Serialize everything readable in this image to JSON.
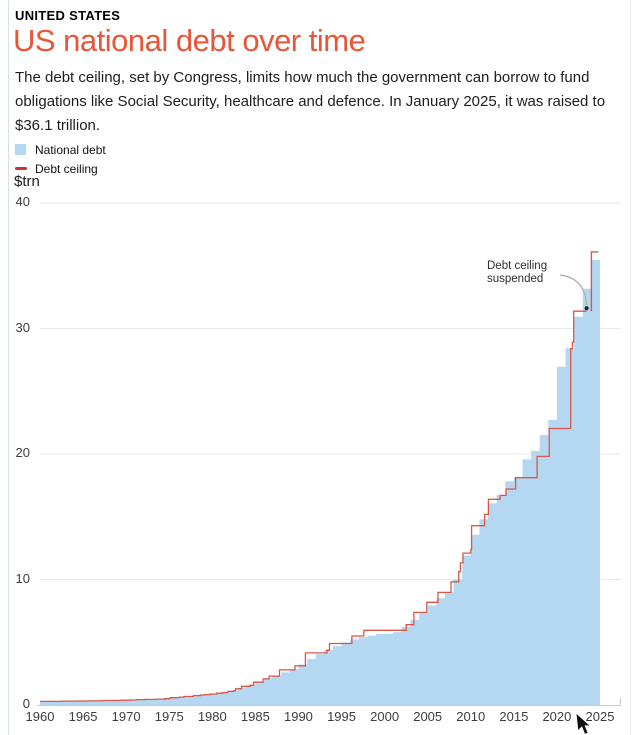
{
  "header": {
    "kicker": "UNITED STATES",
    "title": "US national debt over time",
    "accent_color": "#E8563A",
    "description": "The debt ceiling, set by Congress, limits how much the government can borrow to fund obligations like Social Security, healthcare and defence. In January 2025, it was raised to $36.1 trillion."
  },
  "legend": {
    "items": [
      {
        "label": "National debt",
        "type": "area",
        "color": "#B5D8F2"
      },
      {
        "label": "Debt ceiling",
        "type": "line",
        "color": "#CD322E"
      }
    ]
  },
  "chart_data": {
    "type": "area",
    "title": "US national debt over time",
    "xlabel": "",
    "ylabel": "$trn",
    "xlim": [
      1960,
      2025
    ],
    "ylim": [
      0,
      40
    ],
    "y_ticks": [
      0,
      10,
      20,
      30,
      40
    ],
    "x_ticks": [
      1960,
      1965,
      1970,
      1975,
      1980,
      1985,
      1990,
      1995,
      2000,
      2005,
      2010,
      2015,
      2020,
      2025
    ],
    "grid": "horizontal",
    "legend_position": "top-left",
    "series": [
      {
        "name": "National debt",
        "type": "step-area",
        "color": "#B5D8F2",
        "points": [
          [
            1960,
            0.29
          ],
          [
            1961,
            0.29
          ],
          [
            1962,
            0.3
          ],
          [
            1963,
            0.31
          ],
          [
            1964,
            0.31
          ],
          [
            1965,
            0.32
          ],
          [
            1966,
            0.32
          ],
          [
            1967,
            0.33
          ],
          [
            1968,
            0.35
          ],
          [
            1969,
            0.35
          ],
          [
            1970,
            0.37
          ],
          [
            1971,
            0.4
          ],
          [
            1972,
            0.43
          ],
          [
            1973,
            0.46
          ],
          [
            1974,
            0.47
          ],
          [
            1975,
            0.53
          ],
          [
            1976,
            0.62
          ],
          [
            1977,
            0.7
          ],
          [
            1978,
            0.77
          ],
          [
            1979,
            0.83
          ],
          [
            1980,
            0.91
          ],
          [
            1981,
            1.0
          ],
          [
            1982,
            1.14
          ],
          [
            1983,
            1.38
          ],
          [
            1984,
            1.57
          ],
          [
            1985,
            1.82
          ],
          [
            1986,
            2.13
          ],
          [
            1987,
            2.35
          ],
          [
            1988,
            2.6
          ],
          [
            1989,
            2.86
          ],
          [
            1990,
            3.23
          ],
          [
            1991,
            3.67
          ],
          [
            1992,
            4.06
          ],
          [
            1993,
            4.41
          ],
          [
            1994,
            4.69
          ],
          [
            1995,
            4.97
          ],
          [
            1996,
            5.22
          ],
          [
            1997,
            5.41
          ],
          [
            1998,
            5.53
          ],
          [
            1999,
            5.66
          ],
          [
            2000,
            5.67
          ],
          [
            2001,
            5.81
          ],
          [
            2002,
            6.23
          ],
          [
            2003,
            6.78
          ],
          [
            2004,
            7.38
          ],
          [
            2005,
            7.93
          ],
          [
            2006,
            8.51
          ],
          [
            2007,
            9.01
          ],
          [
            2008,
            10.02
          ],
          [
            2009,
            11.91
          ],
          [
            2010,
            13.56
          ],
          [
            2011,
            14.79
          ],
          [
            2012,
            16.07
          ],
          [
            2013,
            16.74
          ],
          [
            2014,
            17.82
          ],
          [
            2015,
            18.15
          ],
          [
            2016,
            19.57
          ],
          [
            2017,
            20.25
          ],
          [
            2018,
            21.52
          ],
          [
            2019,
            22.72
          ],
          [
            2020,
            26.95
          ],
          [
            2021,
            28.43
          ],
          [
            2022,
            30.93
          ],
          [
            2023,
            33.17
          ],
          [
            2024,
            35.46
          ],
          [
            2025,
            36.0
          ]
        ]
      },
      {
        "name": "Debt ceiling",
        "type": "step-line",
        "color": "#D9574A",
        "points": [
          [
            1960,
            0.29
          ],
          [
            1962.6,
            0.31
          ],
          [
            1964,
            0.32
          ],
          [
            1965.5,
            0.33
          ],
          [
            1967.2,
            0.36
          ],
          [
            1969.3,
            0.38
          ],
          [
            1970.5,
            0.4
          ],
          [
            1971.2,
            0.43
          ],
          [
            1972.2,
            0.45
          ],
          [
            1973.5,
            0.47
          ],
          [
            1974.5,
            0.5
          ],
          [
            1975.1,
            0.58
          ],
          [
            1975.9,
            0.6
          ],
          [
            1976.2,
            0.63
          ],
          [
            1976.7,
            0.68
          ],
          [
            1977.8,
            0.75
          ],
          [
            1978.6,
            0.8
          ],
          [
            1979.1,
            0.83
          ],
          [
            1979.7,
            0.88
          ],
          [
            1980.5,
            0.94
          ],
          [
            1981.2,
            0.99
          ],
          [
            1981.8,
            1.08
          ],
          [
            1982.5,
            1.14
          ],
          [
            1982.7,
            1.29
          ],
          [
            1983.4,
            1.49
          ],
          [
            1984.4,
            1.57
          ],
          [
            1984.8,
            1.82
          ],
          [
            1985.9,
            2.08
          ],
          [
            1986.6,
            2.3
          ],
          [
            1987.8,
            2.8
          ],
          [
            1989.6,
            3.12
          ],
          [
            1990.8,
            4.15
          ],
          [
            1993.3,
            4.37
          ],
          [
            1993.6,
            4.9
          ],
          [
            1996.2,
            5.5
          ],
          [
            1997.6,
            5.95
          ],
          [
            2002.5,
            6.4
          ],
          [
            2003.4,
            7.38
          ],
          [
            2004.9,
            8.18
          ],
          [
            2006.2,
            8.97
          ],
          [
            2007.7,
            9.82
          ],
          [
            2008.6,
            10.62
          ],
          [
            2008.8,
            11.32
          ],
          [
            2009.1,
            12.1
          ],
          [
            2010.0,
            12.39
          ],
          [
            2010.1,
            14.29
          ],
          [
            2011.6,
            15.19
          ],
          [
            2012.05,
            16.39
          ],
          [
            2013.4,
            16.7
          ],
          [
            2014.1,
            17.21
          ],
          [
            2015.2,
            18.11
          ],
          [
            2017.7,
            19.81
          ],
          [
            2019.1,
            22.03
          ],
          [
            2021.6,
            28.4
          ],
          [
            2021.8,
            28.9
          ],
          [
            2021.95,
            31.38
          ]
        ],
        "suspended_from": 2023.45,
        "resume": {
          "year": 2024.0,
          "value": 36.1,
          "hold_until": 2024.8
        }
      }
    ],
    "annotation": {
      "text": "Debt ceiling\nsuspended",
      "target_year": 2023.45,
      "target_value": 31.38
    }
  }
}
